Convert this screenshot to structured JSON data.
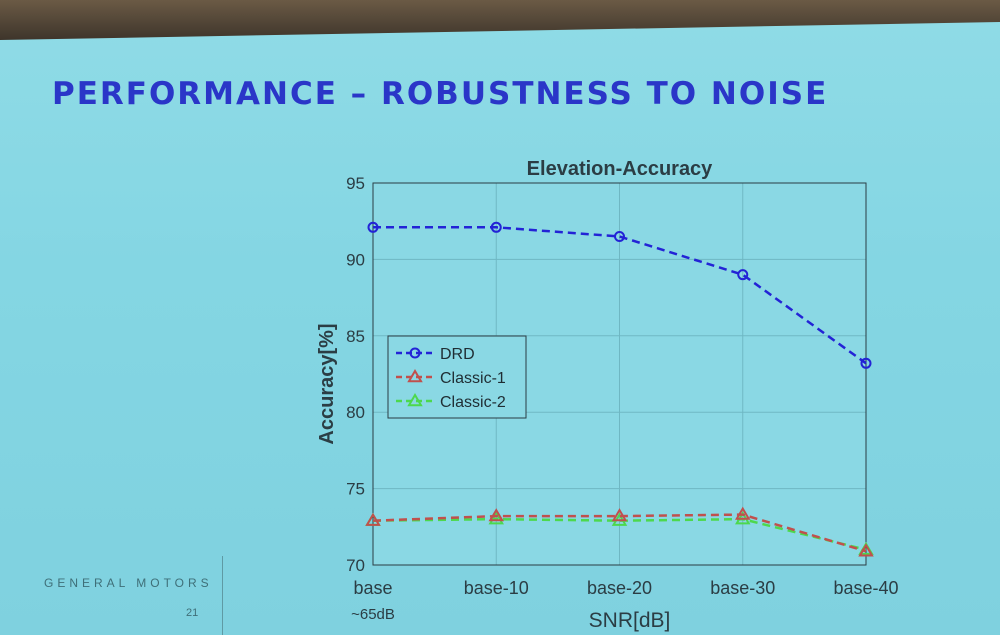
{
  "slide": {
    "title": "PERFORMANCE – ROBUSTNESS TO NOISE",
    "footer_brand": "GENERAL MOTORS",
    "page_number": "21"
  },
  "chart_data": {
    "type": "line",
    "title": "Elevation-Accuracy",
    "xlabel": "SNR[dB]",
    "ylabel": "Accuracy[%]",
    "categories": [
      "base",
      "base-10",
      "base-20",
      "base-30",
      "base-40"
    ],
    "category_note": "~65dB",
    "ylim": [
      70,
      95
    ],
    "yticks": [
      "70",
      "75",
      "80",
      "85",
      "90",
      "95"
    ],
    "grid": true,
    "legend_position": "center-left",
    "series": [
      {
        "name": "DRD",
        "values": [
          92.1,
          92.1,
          91.5,
          89.0,
          83.2
        ],
        "color": "#2323d6",
        "marker": "circle"
      },
      {
        "name": "Classic-1",
        "values": [
          72.9,
          73.2,
          73.2,
          73.3,
          70.9
        ],
        "color": "#c0504d",
        "marker": "triangle"
      },
      {
        "name": "Classic-2",
        "values": [
          72.9,
          73.0,
          72.9,
          73.0,
          71.0
        ],
        "color": "#4dd84d",
        "marker": "triangle"
      }
    ]
  }
}
